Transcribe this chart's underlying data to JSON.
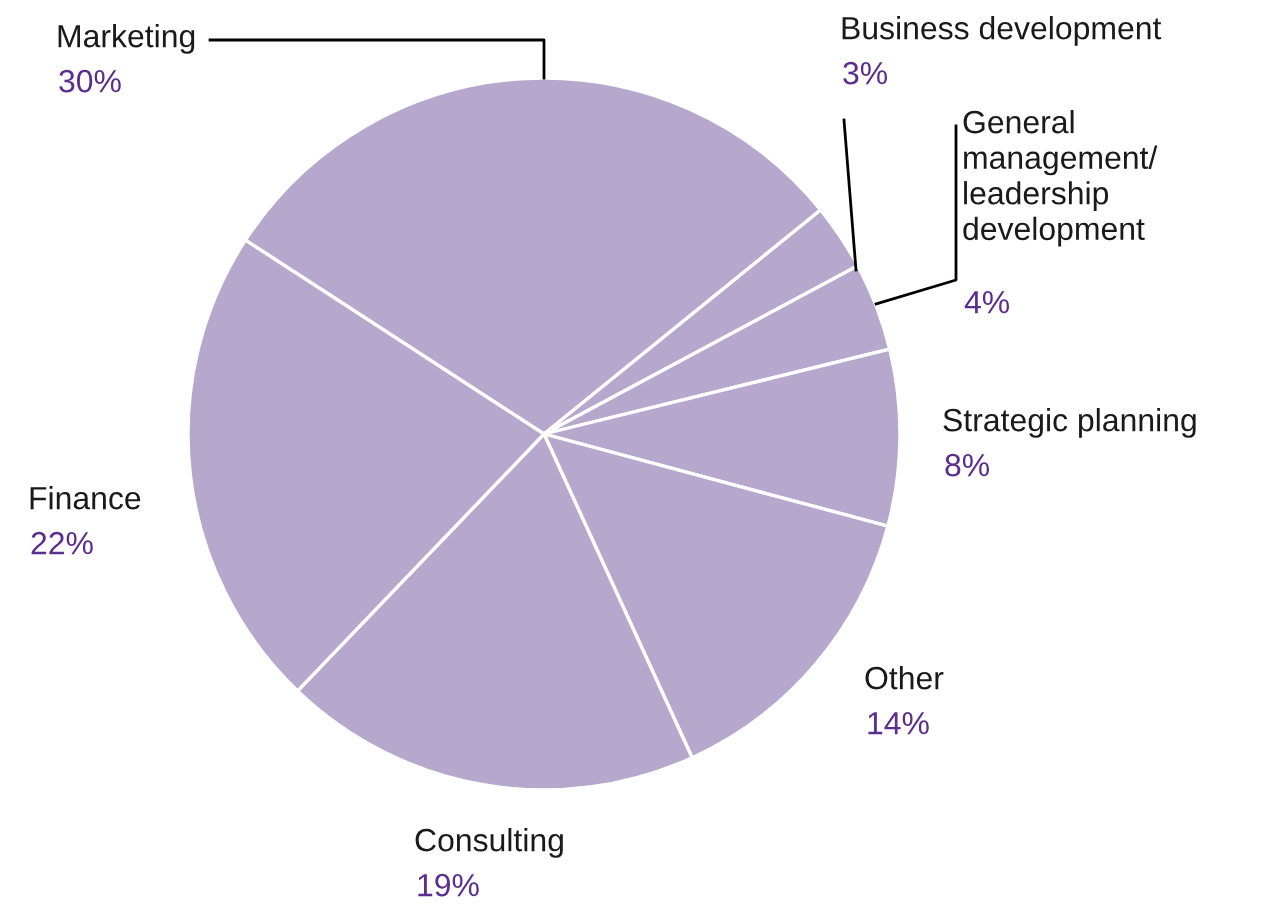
{
  "chart_data": {
    "type": "pie",
    "categories": [
      "Marketing",
      "Business development",
      "General\nmanagement/\nleadership\ndevelopment",
      "Strategic planning",
      "Other",
      "Consulting",
      "Finance"
    ],
    "values": [
      30,
      3,
      4,
      8,
      14,
      19,
      22
    ],
    "value_labels": [
      "30%",
      "3%",
      "4%",
      "8%",
      "14%",
      "19%",
      "22%"
    ],
    "colors": [
      "#b6a8cd",
      "#b6a8cd",
      "#b6a8cd",
      "#b6a8cd",
      "#b6a8cd",
      "#b6a8cd",
      "#b6a8cd"
    ],
    "legend": false
  }
}
